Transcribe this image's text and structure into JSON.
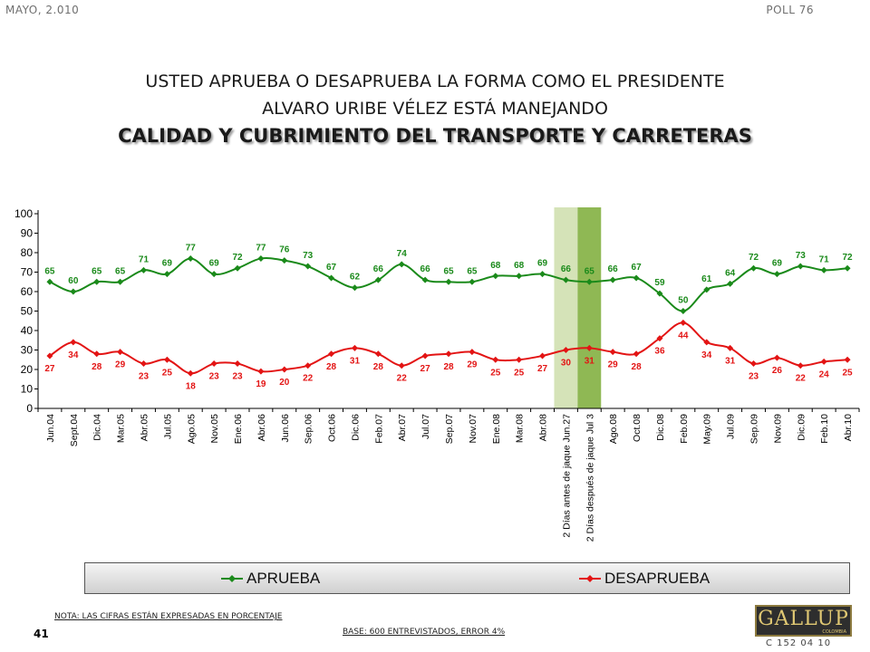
{
  "header": {
    "date": "MAYO, 2.010",
    "poll": "POLL 76"
  },
  "title": {
    "line1": "USTED APRUEBA O DESAPRUEBA LA FORMA COMO EL PRESIDENTE",
    "line2": "ALVARO URIBE VÉLEZ ESTÁ MANEJANDO",
    "line3": "CALIDAD Y CUBRIMIENTO DEL TRANSPORTE Y CARRETERAS"
  },
  "chart_data": {
    "type": "line",
    "categories": [
      "Jun.04",
      "Sept.04",
      "Dic.04",
      "Mar.05",
      "Abr.05",
      "Jul.05",
      "Ago.05",
      "Nov.05",
      "Ene.06",
      "Abr.06",
      "Jun.06",
      "Sep.06",
      "Oct.06",
      "Dic.06",
      "Feb.07",
      "Abr.07",
      "Jul.07",
      "Sep.07",
      "Nov.07",
      "Ene.08",
      "Mar.08",
      "Abr.08",
      "2 Días antes de jaque Jun.27",
      "2 Días después de jaque Jul 3",
      "Ago.08",
      "Oct.08",
      "Dic.08",
      "Feb.09",
      "May.09",
      "Jul.09",
      "Sep.09",
      "Nov.09",
      "Dic.09",
      "Feb.10",
      "Abr.10"
    ],
    "series": [
      {
        "name": "APRUEBA",
        "color": "#1a8a1a",
        "values": [
          65,
          60,
          65,
          65,
          71,
          69,
          77,
          69,
          72,
          77,
          76,
          73,
          67,
          62,
          66,
          74,
          66,
          65,
          65,
          68,
          68,
          69,
          66,
          65,
          66,
          67,
          59,
          50,
          61,
          64,
          72,
          69,
          73,
          71,
          72
        ]
      },
      {
        "name": "DESAPRUEBA",
        "color": "#e31414",
        "values": [
          27,
          34,
          28,
          29,
          23,
          25,
          18,
          23,
          23,
          19,
          20,
          22,
          28,
          31,
          28,
          22,
          27,
          28,
          29,
          25,
          25,
          27,
          30,
          31,
          29,
          28,
          36,
          44,
          34,
          31,
          23,
          26,
          22,
          24,
          25
        ]
      }
    ],
    "ylim": [
      0,
      100
    ],
    "yticks": [
      0,
      10,
      20,
      30,
      40,
      50,
      60,
      70,
      80,
      90,
      100
    ],
    "highlight_bands": [
      {
        "category_index": 22,
        "color": "#d5e3b8"
      },
      {
        "category_index": 23,
        "color": "#8fb854"
      }
    ],
    "legend_position": "bottom"
  },
  "legend": {
    "item1": "APRUEBA",
    "item2": "DESAPRUEBA"
  },
  "footer": {
    "note": "NOTA: LAS CIFRAS ESTÁN EXPRESADAS EN PORCENTAJE",
    "base": "BASE: 600 ENTREVISTADOS, ERROR 4%",
    "page": "41",
    "logo": "GALLUP",
    "logo_sub": "COLOMBIA",
    "code": "C 152 04 10"
  }
}
